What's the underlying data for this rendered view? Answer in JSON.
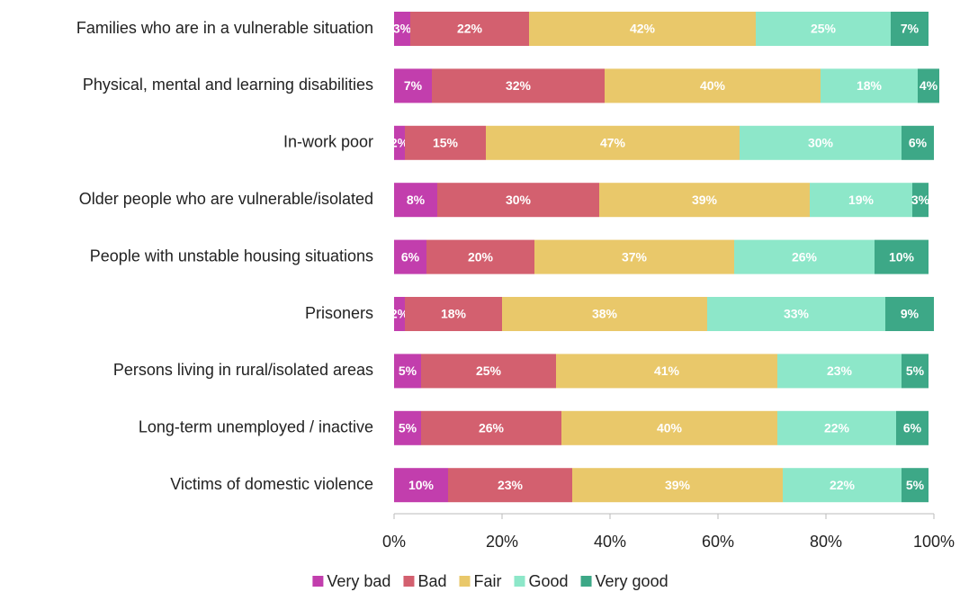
{
  "chart_data": {
    "type": "stacked-bar-horizontal",
    "categories": [
      "Families who are in a vulnerable situation",
      "Physical, mental and learning disabilities",
      "In-work poor",
      "Older people who are vulnerable/isolated",
      "People with unstable housing situations",
      "Prisoners",
      "Persons living in rural/isolated areas",
      "Long-term unemployed / inactive",
      "Victims of domestic violence"
    ],
    "series": [
      {
        "name": "Very bad",
        "color": "#c23ead",
        "values": [
          3,
          7,
          2,
          8,
          6,
          2,
          5,
          5,
          10
        ],
        "value_labels": [
          "3%",
          "7%",
          "2%",
          "8%",
          "6%",
          "2%",
          "5%",
          "5%",
          "10%"
        ]
      },
      {
        "name": "Bad",
        "color": "#d3606f",
        "values": [
          22,
          32,
          15,
          30,
          20,
          18,
          25,
          26,
          23
        ],
        "value_labels": [
          "22%",
          "32%",
          "15%",
          "30%",
          "20%",
          "18%",
          "25%",
          "26%",
          "23%"
        ]
      },
      {
        "name": "Fair",
        "color": "#e9c86a",
        "values": [
          42,
          40,
          47,
          39,
          37,
          38,
          41,
          40,
          39
        ],
        "value_labels": [
          "42%",
          "40%",
          "47%",
          "39%",
          "37%",
          "38%",
          "41%",
          "40%",
          "39%"
        ]
      },
      {
        "name": "Good",
        "color": "#8de7c9",
        "values": [
          25,
          18,
          30,
          19,
          26,
          33,
          23,
          22,
          22
        ],
        "value_labels": [
          "25%",
          "18%",
          "30%",
          "19%",
          "26%",
          "33%",
          "23%",
          "22%",
          "22%"
        ]
      },
      {
        "name": "Very good",
        "color": "#3da887",
        "values": [
          7,
          4,
          6,
          3,
          10,
          9,
          5,
          6,
          5
        ],
        "value_labels": [
          "7%",
          "4%",
          "6%",
          "3%",
          "10%",
          "9%",
          "5%",
          "6%",
          "5%"
        ]
      }
    ],
    "xlim": [
      0,
      100
    ],
    "xticks": [
      {
        "value": 0,
        "label": "0%"
      },
      {
        "value": 20,
        "label": "20%"
      },
      {
        "value": 40,
        "label": "40%"
      },
      {
        "value": 60,
        "label": "60%"
      },
      {
        "value": 80,
        "label": "80%"
      },
      {
        "value": 100,
        "label": "100%"
      }
    ],
    "legend": "bottom"
  }
}
